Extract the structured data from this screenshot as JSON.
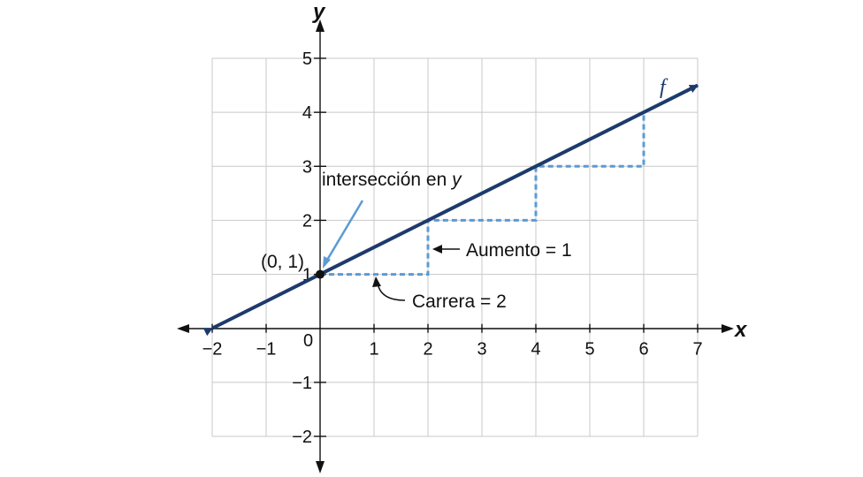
{
  "chart_data": {
    "type": "line",
    "title": "",
    "xlabel": "x",
    "ylabel": "y",
    "xlim": [
      -2,
      7
    ],
    "ylim": [
      -2,
      5
    ],
    "grid": true,
    "x_ticks": [
      {
        "value": -2,
        "label": "−2"
      },
      {
        "value": -1,
        "label": "−1"
      },
      {
        "value": 1,
        "label": "1"
      },
      {
        "value": 2,
        "label": "2"
      },
      {
        "value": 3,
        "label": "3"
      },
      {
        "value": 4,
        "label": "4"
      },
      {
        "value": 5,
        "label": "5"
      },
      {
        "value": 6,
        "label": "6"
      },
      {
        "value": 7,
        "label": "7"
      }
    ],
    "y_ticks": [
      {
        "value": -2,
        "label": "−2"
      },
      {
        "value": -1,
        "label": "−1"
      },
      {
        "value": 1,
        "label": "1"
      },
      {
        "value": 2,
        "label": "2"
      },
      {
        "value": 3,
        "label": "3"
      },
      {
        "value": 4,
        "label": "4"
      },
      {
        "value": 5,
        "label": "5"
      }
    ],
    "origin_label": "0",
    "series": [
      {
        "name": "f",
        "color": "#1d3a6b",
        "x": [
          -2,
          7
        ],
        "y": [
          0,
          4.5
        ]
      }
    ],
    "steps": {
      "color": "#5b9bd5",
      "x": [
        0,
        2,
        2,
        4,
        4,
        6,
        6
      ],
      "y": [
        1,
        1,
        2,
        2,
        3,
        3,
        4
      ]
    },
    "point": {
      "x": 0,
      "y": 1,
      "label": "(0, 1)"
    },
    "annotations": {
      "intercept": {
        "text_main": "intersección en ",
        "text_var": "y"
      },
      "rise": "Aumento = 1",
      "run": "Carrera = 2"
    }
  }
}
